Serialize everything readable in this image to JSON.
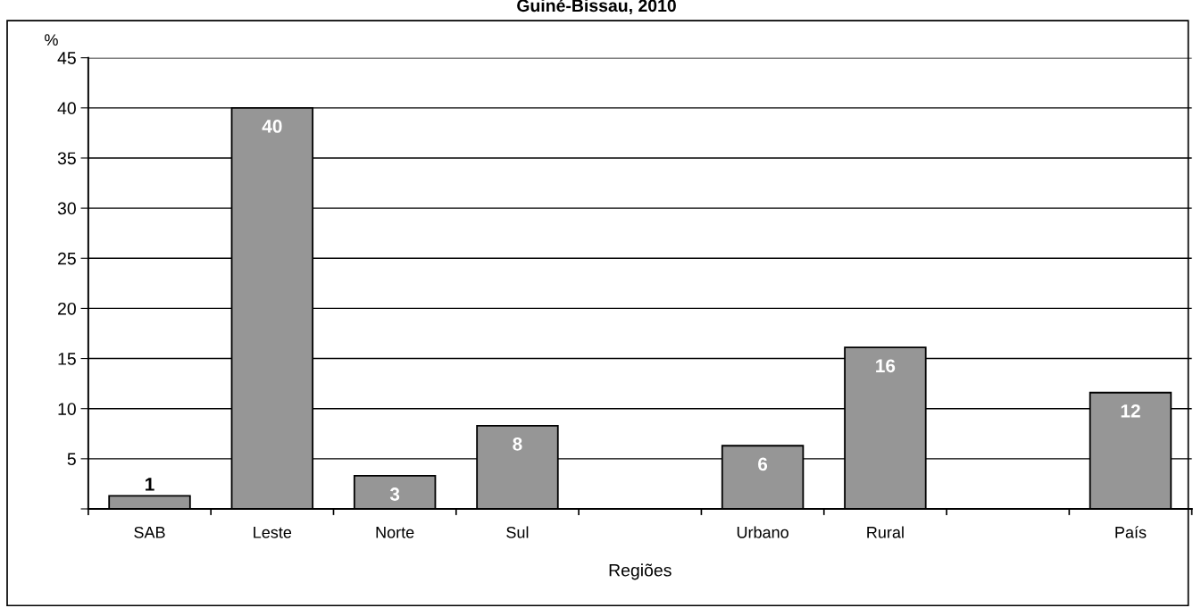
{
  "chart_data": {
    "type": "bar",
    "title": "Guiné-Bissau, 2010",
    "xlabel": "Regiões",
    "ylabel": "%",
    "categories": [
      "SAB",
      "Leste",
      "Norte",
      "Sul",
      null,
      "Urbano",
      "Rural",
      null,
      "País"
    ],
    "values": [
      1.3,
      40,
      3.3,
      8.3,
      null,
      6.3,
      16.1,
      null,
      11.6
    ],
    "value_labels": [
      "1",
      "40",
      "3",
      "8",
      null,
      "6",
      "16",
      null,
      "12"
    ],
    "color": "#969696",
    "ylim": [
      0,
      45
    ],
    "yticks": [
      {
        "value": 0,
        "label": null
      },
      5,
      10,
      15,
      20,
      25,
      30,
      35,
      40,
      45
    ],
    "grid": "y",
    "legend": false
  }
}
